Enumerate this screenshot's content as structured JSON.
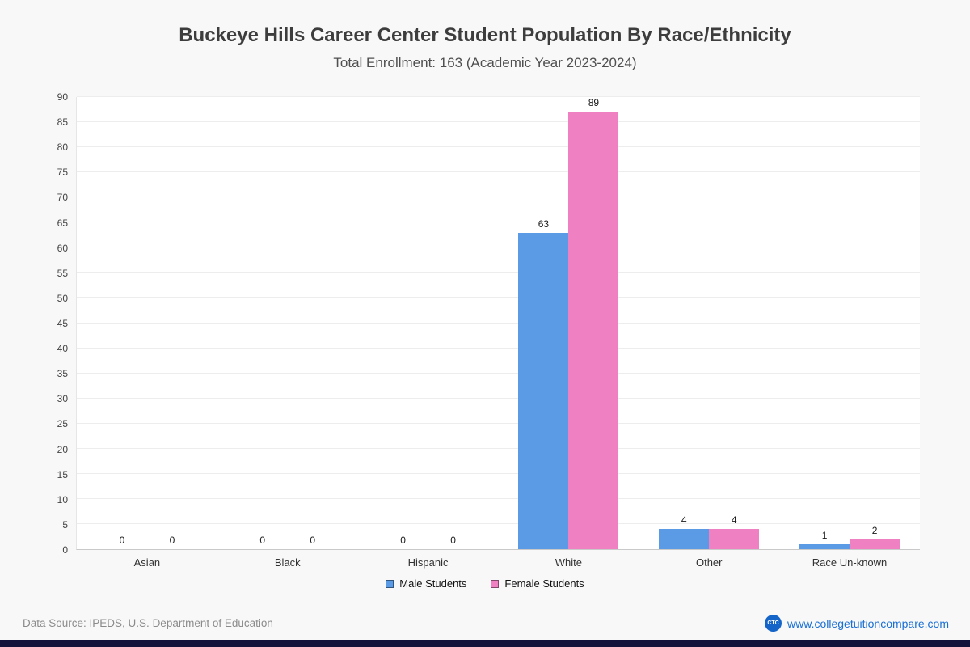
{
  "page": {
    "footer": {
      "source": "Data Source: IPEDS, U.S. Department of Education",
      "site": "www.collegetuitioncompare.com",
      "logo_text": "CTC",
      "brand_blue": "#1a6fd4"
    }
  },
  "chart_data": {
    "type": "bar",
    "title": "Buckeye Hills Career Center Student Population By Race/Ethnicity",
    "subtitle": "Total Enrollment: 163 (Academic Year 2023-2024)",
    "categories": [
      "Asian",
      "Black",
      "Hispanic",
      "White",
      "Other",
      "Race Un-known"
    ],
    "series": [
      {
        "name": "Male Students",
        "color": "#5b9be5",
        "values": [
          0,
          0,
          0,
          63,
          4,
          1
        ]
      },
      {
        "name": "Female Students",
        "color": "#ef80c1",
        "values": [
          0,
          0,
          0,
          89,
          4,
          2
        ]
      }
    ],
    "ylim": [
      0,
      90
    ],
    "ytick_step": 5,
    "grid": true,
    "legend_position": "bottom"
  }
}
